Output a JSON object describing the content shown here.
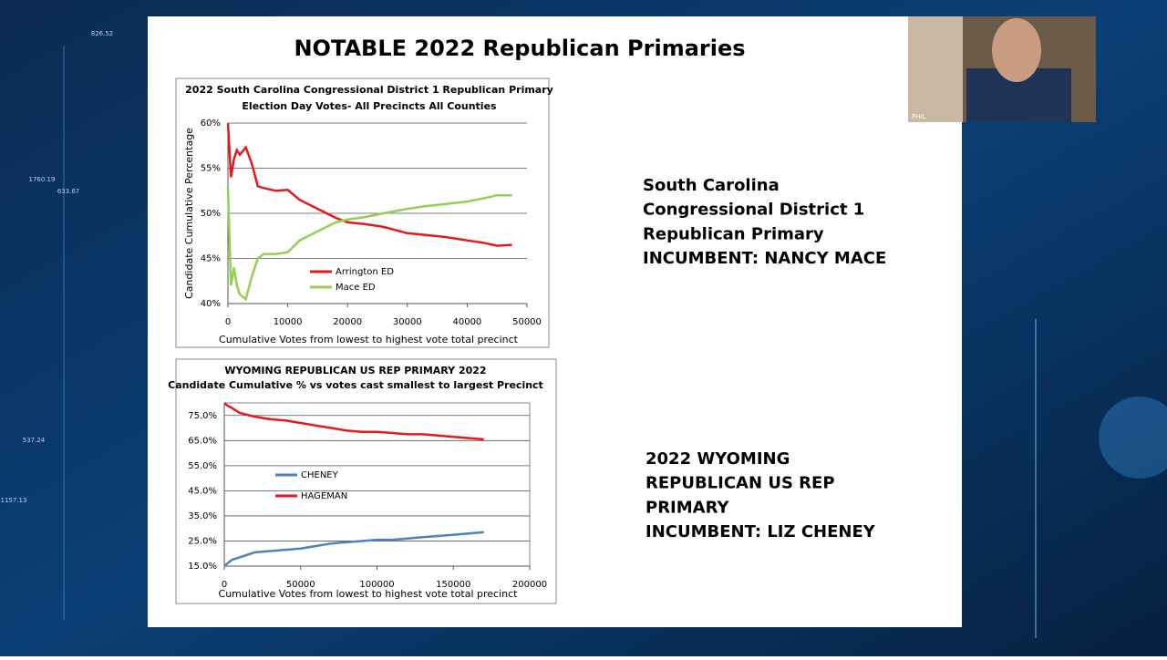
{
  "title": "NOTABLE 2022 Republican Primaries",
  "chart_data": [
    {
      "type": "line",
      "title": "2022 South Carolina Congressional District 1 Republican Primary",
      "subtitle": "Election Day Votes- All Precincts All Counties",
      "x_label": "Cumulative Votes from lowest to highest vote total precinct",
      "y_label": "Candidate Cumulative Percentage",
      "x": [
        0,
        500,
        1000,
        1500,
        2000,
        3000,
        4000,
        5000,
        6000,
        8000,
        10000,
        12000,
        15000,
        18000,
        20000,
        23000,
        26000,
        30000,
        33000,
        36000,
        40000,
        43000,
        45000,
        47500
      ],
      "series": [
        {
          "name": "Arrington ED",
          "color": "#e31a1c",
          "values": [
            60,
            54,
            56,
            57,
            56.5,
            57.3,
            55.5,
            53,
            52.8,
            52.5,
            52.6,
            51.5,
            50.5,
            49.5,
            49,
            48.8,
            48.5,
            47.8,
            47.6,
            47.4,
            47,
            46.7,
            46.4,
            46.5
          ]
        },
        {
          "name": "Mace ED",
          "color": "#92d050",
          "values": [
            53,
            42,
            44,
            42,
            41,
            40.5,
            43,
            45,
            45.5,
            45.5,
            45.7,
            47,
            48,
            49,
            49.3,
            49.6,
            50,
            50.5,
            50.8,
            51,
            51.3,
            51.7,
            52,
            52
          ]
        }
      ],
      "xlim": [
        0,
        50000
      ],
      "xticks": [
        0,
        10000,
        20000,
        30000,
        40000,
        50000
      ],
      "ylim": [
        40,
        60
      ],
      "yticks": [
        {
          "value": 40,
          "label": "40%"
        },
        {
          "value": 45,
          "label": "45%"
        },
        {
          "value": 50,
          "label": "50%"
        },
        {
          "value": 55,
          "label": "55%"
        },
        {
          "value": 60,
          "label": "60%"
        }
      ],
      "grid": true
    },
    {
      "type": "line",
      "title": "WYOMING REPUBLICAN US REP PRIMARY 2022",
      "subtitle": "Candidate Cumulative % vs votes cast smallest to largest Precinct",
      "x_label": "Cumulative Votes from lowest to highest vote total precinct",
      "x": [
        0,
        2000,
        5000,
        10000,
        20000,
        30000,
        40000,
        50000,
        60000,
        70000,
        80000,
        90000,
        100000,
        110000,
        120000,
        130000,
        140000,
        150000,
        160000,
        170000
      ],
      "series": [
        {
          "name": "CHENEY",
          "color": "#4f81bd",
          "values": [
            15,
            16,
            17.5,
            18.5,
            20.5,
            21,
            21.5,
            22,
            23,
            24,
            24.5,
            25,
            25.5,
            25.5,
            26,
            26.5,
            27,
            27.5,
            28,
            28.5
          ]
        },
        {
          "name": "HAGEMAN",
          "color": "#e31a1c",
          "values": [
            80,
            79,
            78,
            76,
            74.5,
            73.5,
            73,
            72,
            71,
            70,
            69,
            68.5,
            68.5,
            68,
            67.5,
            67.5,
            67,
            66.5,
            66,
            65.5
          ]
        }
      ],
      "xlim": [
        0,
        200000
      ],
      "xticks": [
        0,
        50000,
        100000,
        150000,
        200000
      ],
      "ylim": [
        15,
        80
      ],
      "yticks": [
        {
          "value": 15,
          "label": "15.0%"
        },
        {
          "value": 25,
          "label": "25.0%"
        },
        {
          "value": 35,
          "label": "35.0%"
        },
        {
          "value": 45,
          "label": "45.0%"
        },
        {
          "value": 55,
          "label": "55.0%"
        },
        {
          "value": 65,
          "label": "65.0%"
        },
        {
          "value": 75,
          "label": "75.0%"
        }
      ],
      "grid": true
    }
  ],
  "notes": [
    [
      "South Carolina",
      "Congressional District 1",
      "Republican Primary",
      "INCUMBENT: NANCY MACE"
    ],
    [
      "2022 WYOMING",
      "REPUBLICAN US REP",
      "PRIMARY",
      "INCUMBENT: LIZ CHENEY"
    ]
  ],
  "video": {
    "name": "PHIL"
  },
  "background_labels": [
    "826.52",
    "1760.19",
    "633.67",
    "537.24",
    "1157.13"
  ]
}
